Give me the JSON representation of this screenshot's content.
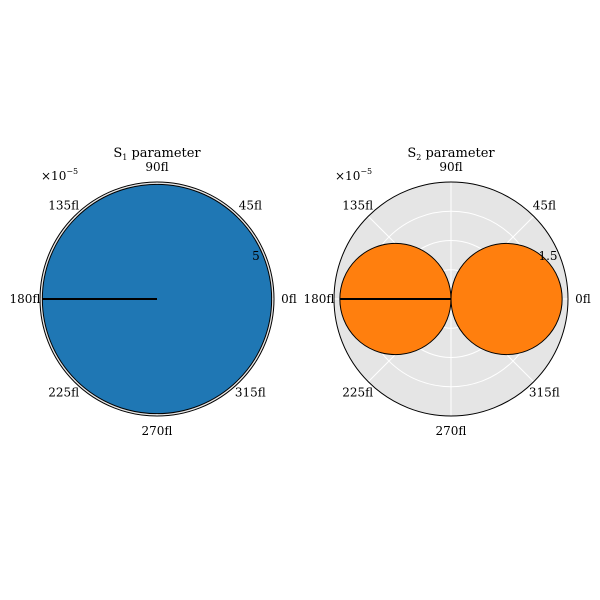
{
  "chart_data": [
    {
      "type": "polar",
      "title_prefix": "S",
      "title_subscript": "1",
      "title_suffix": " parameter",
      "offset_base": "×10",
      "offset_exponent": "−5",
      "theta_tick_labels": [
        "0fl",
        "45fl",
        "90fl",
        "135fl",
        "180fl",
        "225fl",
        "270fl",
        "315fl"
      ],
      "theta_tick_angles_deg": [
        0,
        45,
        90,
        135,
        180,
        225,
        270,
        315
      ],
      "r_tick_labels": [
        "5"
      ],
      "rmax": 1.0,
      "fill_color": "#1f77b4",
      "background_color": "#e5e5e5",
      "grid": true,
      "shape": "circle",
      "shape_radius": 0.98,
      "shape_center_angle_deg": 0,
      "shape_center_r": 0,
      "line_theta_deg": 180
    },
    {
      "type": "polar",
      "title_prefix": "S",
      "title_subscript": "2",
      "title_suffix": " parameter",
      "offset_base": "×10",
      "offset_exponent": "−5",
      "theta_tick_labels": [
        "0fl",
        "45fl",
        "90fl",
        "135fl",
        "180fl",
        "225fl",
        "270fl",
        "315fl"
      ],
      "theta_tick_angles_deg": [
        0,
        45,
        90,
        135,
        180,
        225,
        270,
        315
      ],
      "r_tick_labels": [
        "1.5"
      ],
      "r_tick_values": [
        1.5
      ],
      "rmax": 2.0,
      "fill_color": "#ff7f0e",
      "background_color": "#e5e5e5",
      "grid": true,
      "shape": "two-lobe",
      "lobe_radius": 0.95,
      "line_theta_deg": 180
    }
  ]
}
